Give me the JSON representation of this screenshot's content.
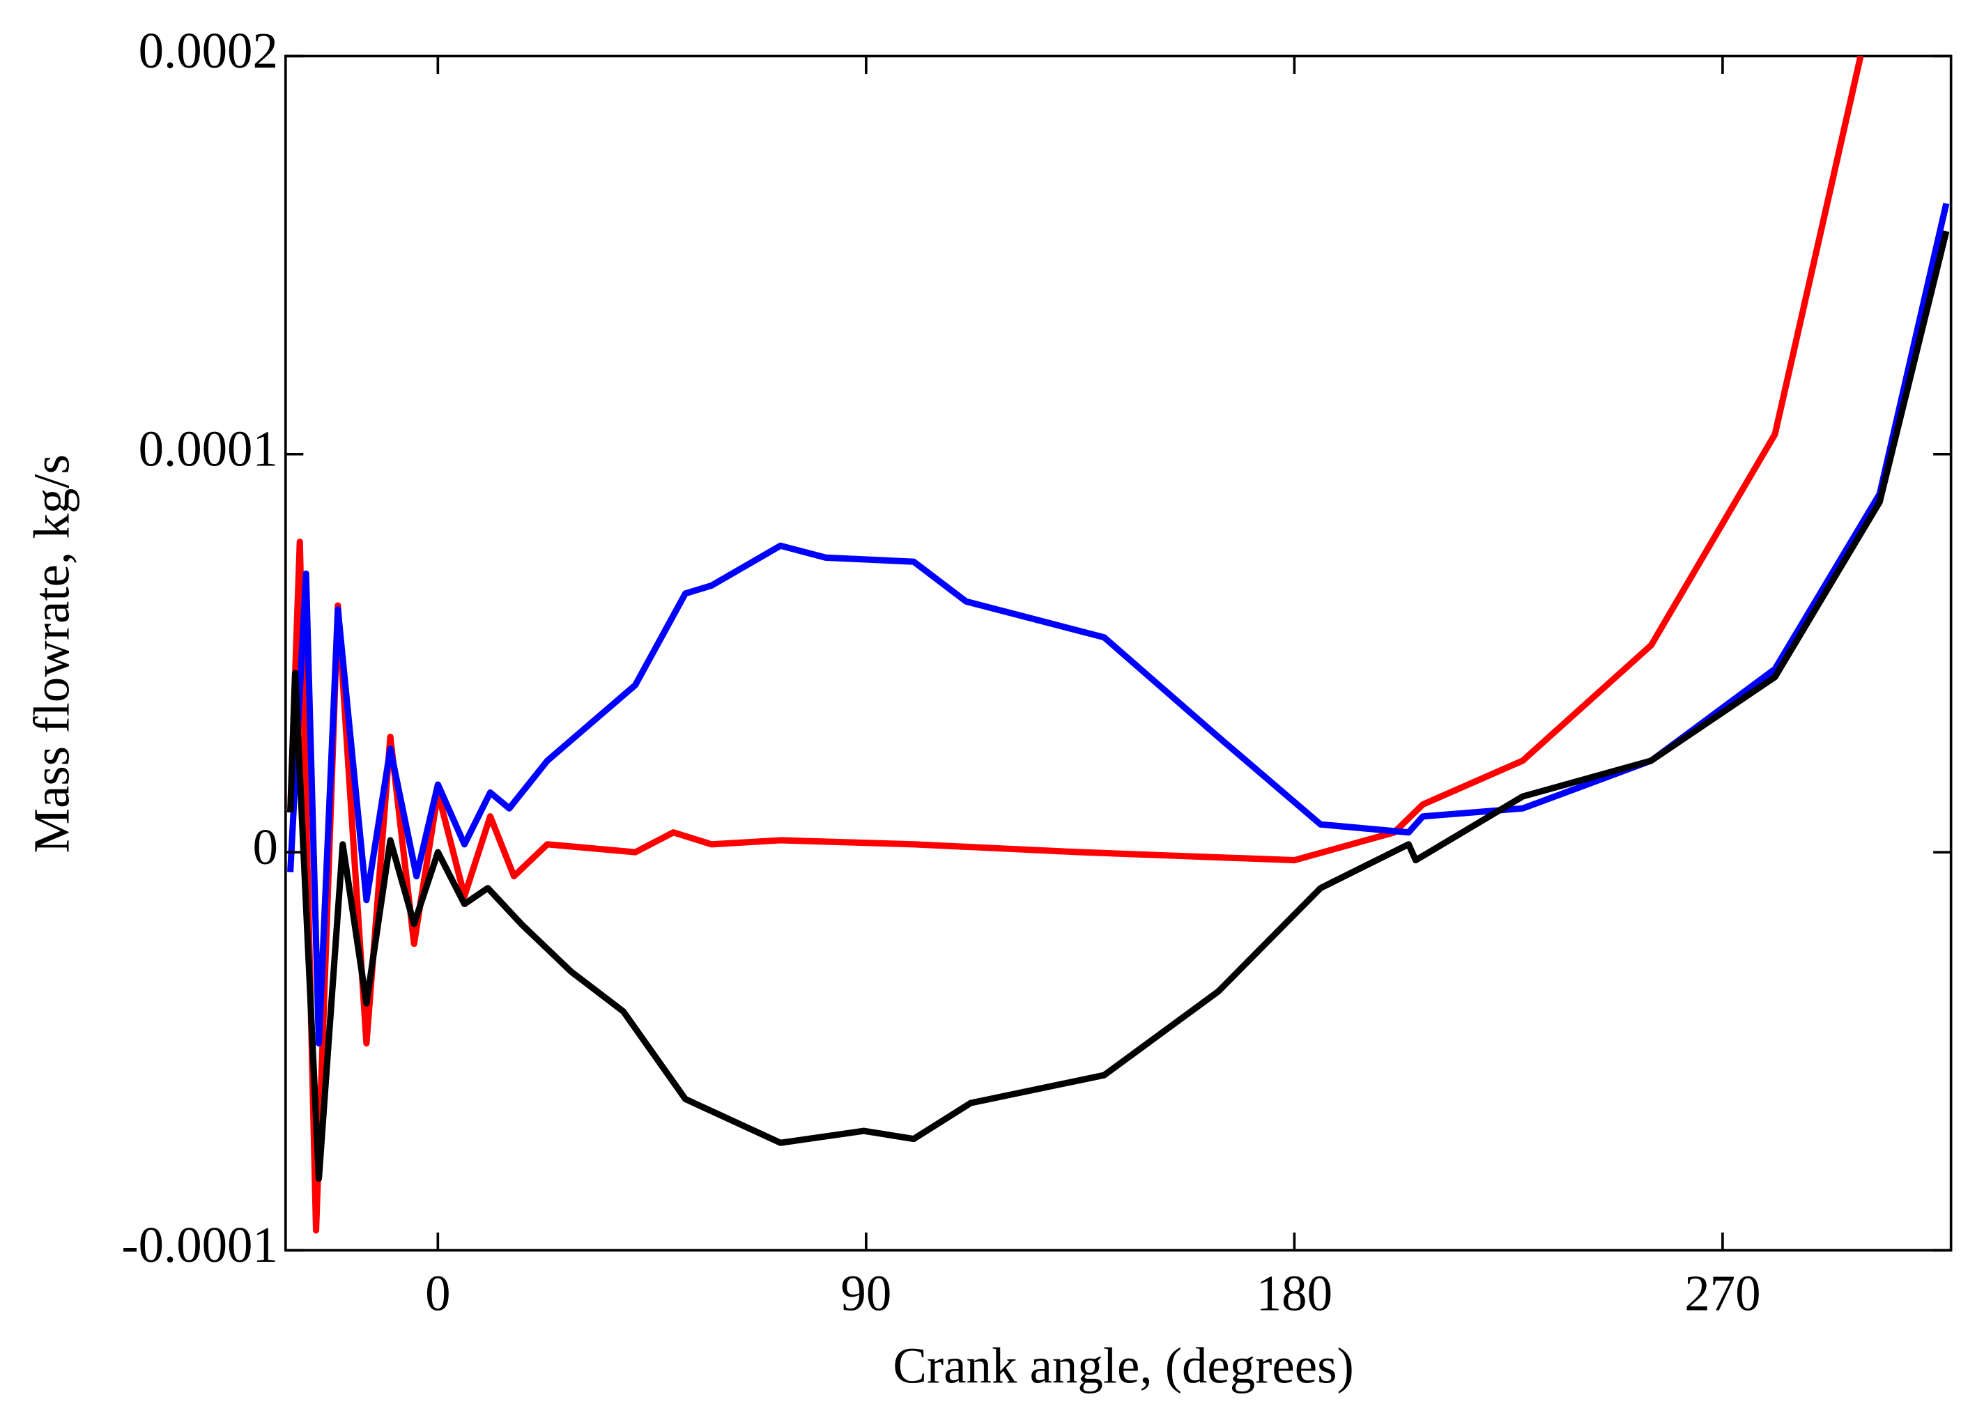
{
  "chart_data": {
    "type": "line",
    "xlabel": "Crank angle, (degrees)",
    "ylabel": "Mass flowrate, kg/s",
    "xlim": [
      -32,
      318
    ],
    "ylim": [
      -0.0001,
      0.0002
    ],
    "xticks": [
      0,
      90,
      180,
      270
    ],
    "yticks": [
      -0.0001,
      0,
      0.0001,
      0.0002
    ],
    "series": [
      {
        "color": "#ff0000",
        "x": [
          -31,
          -29,
          -25.6,
          -21,
          -15,
          -10,
          -5,
          0,
          5.6,
          11,
          16,
          23,
          41.5,
          49.5,
          57.5,
          72,
          100,
          135,
          180,
          201,
          207,
          228,
          255,
          281,
          299
        ],
        "values": [
          1e-05,
          7.8e-05,
          -9.5e-05,
          6.2e-05,
          -4.8e-05,
          2.9e-05,
          -2.3e-05,
          1.5e-05,
          -1.1e-05,
          9e-06,
          -6e-06,
          2e-06,
          0,
          5e-06,
          2e-06,
          3e-06,
          2e-06,
          0,
          -2e-06,
          5e-06,
          1.2e-05,
          2.3e-05,
          5.2e-05,
          0.000105,
          0.0002
        ]
      },
      {
        "color": "#0000ff",
        "x": [
          -31,
          -27.7,
          -25,
          -21,
          -15,
          -10,
          -4.5,
          0,
          5.6,
          11,
          15,
          23,
          41.5,
          52,
          57.5,
          72,
          81.5,
          100,
          111,
          140,
          164,
          185.5,
          204,
          207,
          228,
          255,
          281,
          303,
          317
        ],
        "values": [
          -5e-06,
          7e-05,
          -4.8e-05,
          6.1e-05,
          -1.2e-05,
          2.6e-05,
          -6e-06,
          1.7e-05,
          2e-06,
          1.5e-05,
          1.1e-05,
          2.3e-05,
          4.2e-05,
          6.5e-05,
          6.7e-05,
          7.7e-05,
          7.4e-05,
          7.3e-05,
          6.3e-05,
          5.4e-05,
          2.9e-05,
          7e-06,
          5e-06,
          9e-06,
          1.1e-05,
          2.3e-05,
          4.6e-05,
          9e-05,
          0.000163
        ]
      },
      {
        "color": "#000000",
        "x": [
          -31,
          -30,
          -25,
          -20,
          -15,
          -10,
          -5,
          0,
          5.6,
          10.5,
          17.5,
          28,
          39,
          52,
          72,
          89.5,
          100,
          112,
          140,
          164,
          185.5,
          204,
          205.5,
          228,
          255,
          281,
          303,
          317
        ],
        "values": [
          1e-05,
          4.5e-05,
          -8.2e-05,
          2e-06,
          -3.8e-05,
          3e-06,
          -1.8e-05,
          0,
          -1.3e-05,
          -9e-06,
          -1.8e-05,
          -3e-05,
          -4e-05,
          -6.2e-05,
          -7.3e-05,
          -7e-05,
          -7.2e-05,
          -6.3e-05,
          -5.6e-05,
          -3.5e-05,
          -9e-06,
          2e-06,
          -2e-06,
          1.4e-05,
          2.3e-05,
          4.4e-05,
          8.8e-05,
          0.000156
        ]
      }
    ]
  }
}
